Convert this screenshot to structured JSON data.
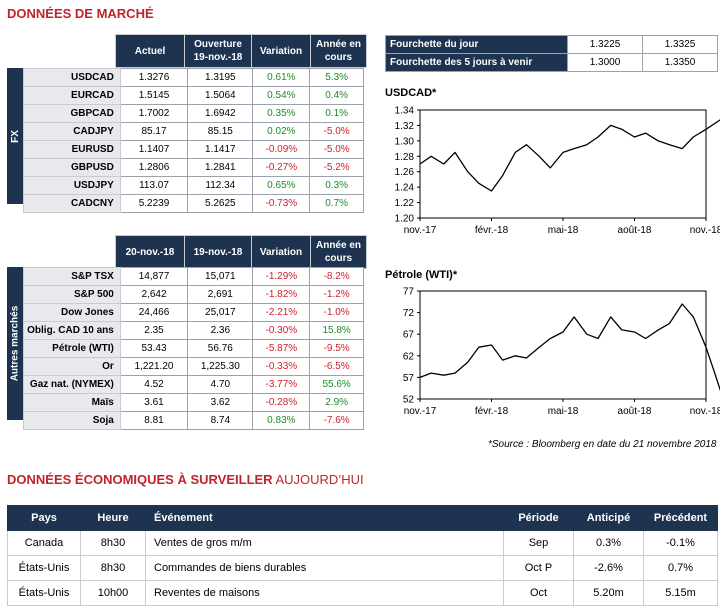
{
  "header": {
    "title": "DONNÉES DE MARCHÉ"
  },
  "fx": {
    "side_label": "FX",
    "columns": [
      "Actuel",
      "Ouverture 19-nov.-18",
      "Variation",
      "Année en cours"
    ],
    "rows": [
      {
        "name": "USDCAD",
        "actuel": "1.3276",
        "ouverture": "1.3195",
        "variation": "0.61%",
        "annee": "5.3%"
      },
      {
        "name": "EURCAD",
        "actuel": "1.5145",
        "ouverture": "1.5064",
        "variation": "0.54%",
        "annee": "0.4%"
      },
      {
        "name": "GBPCAD",
        "actuel": "1.7002",
        "ouverture": "1.6942",
        "variation": "0.35%",
        "annee": "0.1%"
      },
      {
        "name": "CADJPY",
        "actuel": "85.17",
        "ouverture": "85.15",
        "variation": "0.02%",
        "annee": "-5.0%"
      },
      {
        "name": "EURUSD",
        "actuel": "1.1407",
        "ouverture": "1.1417",
        "variation": "-0.09%",
        "annee": "-5.0%"
      },
      {
        "name": "GBPUSD",
        "actuel": "1.2806",
        "ouverture": "1.2841",
        "variation": "-0.27%",
        "annee": "-5.2%"
      },
      {
        "name": "USDJPY",
        "actuel": "113.07",
        "ouverture": "112.34",
        "variation": "0.65%",
        "annee": "0.3%"
      },
      {
        "name": "CADCNY",
        "actuel": "5.2239",
        "ouverture": "5.2625",
        "variation": "-0.73%",
        "annee": "0.7%"
      }
    ]
  },
  "other": {
    "side_label": "Autres marchés",
    "columns": [
      "20-nov.-18",
      "19-nov.-18",
      "Variation",
      "Année en cours"
    ],
    "rows": [
      {
        "name": "S&P TSX",
        "c1": "14,877",
        "c2": "15,071",
        "variation": "-1.29%",
        "annee": "-8.2%"
      },
      {
        "name": "S&P 500",
        "c1": "2,642",
        "c2": "2,691",
        "variation": "-1.82%",
        "annee": "-1.2%"
      },
      {
        "name": "Dow Jones",
        "c1": "24,466",
        "c2": "25,017",
        "variation": "-2.21%",
        "annee": "-1.0%"
      },
      {
        "name": "Oblig. CAD 10 ans",
        "c1": "2.35",
        "c2": "2.36",
        "variation": "-0.30%",
        "annee": "15.8%"
      },
      {
        "name": "Pétrole (WTI)",
        "c1": "53.43",
        "c2": "56.76",
        "variation": "-5.87%",
        "annee": "-9.5%"
      },
      {
        "name": "Or",
        "c1": "1,221.20",
        "c2": "1,225.30",
        "variation": "-0.33%",
        "annee": "-6.5%"
      },
      {
        "name": "Gaz nat. (NYMEX)",
        "c1": "4.52",
        "c2": "4.70",
        "variation": "-3.77%",
        "annee": "55.6%"
      },
      {
        "name": "Maïs",
        "c1": "3.61",
        "c2": "3.62",
        "variation": "-0.28%",
        "annee": "2.9%"
      },
      {
        "name": "Soja",
        "c1": "8.81",
        "c2": "8.74",
        "variation": "0.83%",
        "annee": "-7.6%"
      }
    ]
  },
  "ranges": [
    {
      "label": "Fourchette du jour",
      "low": "1.3225",
      "high": "1.3325"
    },
    {
      "label": "Fourchette des 5 jours à venir",
      "low": "1.3000",
      "high": "1.3350"
    }
  ],
  "source_note": "*Source : Bloomberg en date du  21 novembre 2018",
  "eco": {
    "title_a": "DONNÉES ÉCONOMIQUES À SURVEILLER",
    "title_b": " AUJOURD’HUI",
    "columns": [
      "Pays",
      "Heure",
      "Événement",
      "Période",
      "Anticipé",
      "Précédent"
    ],
    "rows": [
      {
        "pays": "Canada",
        "heure": "8h30",
        "evenement": "Ventes de gros m/m",
        "periode": "Sep",
        "anticipe": "0.3%",
        "precedent": "-0.1%"
      },
      {
        "pays": "États-Unis",
        "heure": "8h30",
        "evenement": "Commandes de biens durables",
        "periode": "Oct P",
        "anticipe": "-2.6%",
        "precedent": "0.7%"
      },
      {
        "pays": "États-Unis",
        "heure": "10h00",
        "evenement": "Reventes de maisons",
        "periode": "Oct",
        "anticipe": "5.20m",
        "precedent": "5.15m"
      }
    ]
  },
  "chart_data": [
    {
      "type": "line",
      "title": "USDCAD*",
      "ylim": [
        1.2,
        1.34
      ],
      "yticks": [
        "1.34",
        "1.32",
        "1.30",
        "1.28",
        "1.26",
        "1.24",
        "1.22",
        "1.20"
      ],
      "xticks": [
        "nov.-17",
        "févr.-18",
        "mai-18",
        "août-18",
        "nov.-18"
      ],
      "x_range": [
        "2017-11",
        "2018-11"
      ],
      "series": [
        {
          "x": [
            "2017-11-01",
            "2017-11-15",
            "2017-12-01",
            "2017-12-15",
            "2018-01-01",
            "2018-01-15",
            "2018-02-01",
            "2018-02-15",
            "2018-03-01",
            "2018-03-15",
            "2018-04-01",
            "2018-04-15",
            "2018-05-01",
            "2018-05-15",
            "2018-06-01",
            "2018-06-15",
            "2018-07-01",
            "2018-07-15",
            "2018-08-01",
            "2018-08-15",
            "2018-09-01",
            "2018-09-15",
            "2018-10-01",
            "2018-10-15",
            "2018-11-01",
            "2018-11-20"
          ],
          "values": [
            1.27,
            1.28,
            1.27,
            1.285,
            1.26,
            1.245,
            1.235,
            1.255,
            1.285,
            1.295,
            1.28,
            1.265,
            1.285,
            1.29,
            1.295,
            1.305,
            1.32,
            1.315,
            1.305,
            1.31,
            1.3,
            1.295,
            1.29,
            1.305,
            1.315,
            1.328
          ]
        }
      ]
    },
    {
      "type": "line",
      "title": "Pétrole (WTI)*",
      "ylim": [
        52,
        77
      ],
      "yticks": [
        "77",
        "72",
        "67",
        "62",
        "57",
        "52"
      ],
      "xticks": [
        "nov.-17",
        "févr.-18",
        "mai-18",
        "août-18",
        "nov.-18"
      ],
      "x_range": [
        "2017-11",
        "2018-11"
      ],
      "series": [
        {
          "x": [
            "2017-11-01",
            "2017-11-15",
            "2017-12-01",
            "2017-12-15",
            "2018-01-01",
            "2018-01-15",
            "2018-02-01",
            "2018-02-15",
            "2018-03-01",
            "2018-03-15",
            "2018-04-01",
            "2018-04-15",
            "2018-05-01",
            "2018-05-15",
            "2018-06-01",
            "2018-06-15",
            "2018-07-01",
            "2018-07-15",
            "2018-08-01",
            "2018-08-15",
            "2018-09-01",
            "2018-09-15",
            "2018-10-01",
            "2018-10-15",
            "2018-11-01",
            "2018-11-12",
            "2018-11-20"
          ],
          "values": [
            57,
            58,
            57.5,
            58,
            60.5,
            64,
            64.5,
            61,
            62,
            61.5,
            64,
            66,
            67.5,
            71,
            67,
            66,
            71,
            68,
            67.5,
            66,
            68,
            69.5,
            74,
            71,
            64,
            58,
            53.5
          ]
        }
      ]
    }
  ]
}
